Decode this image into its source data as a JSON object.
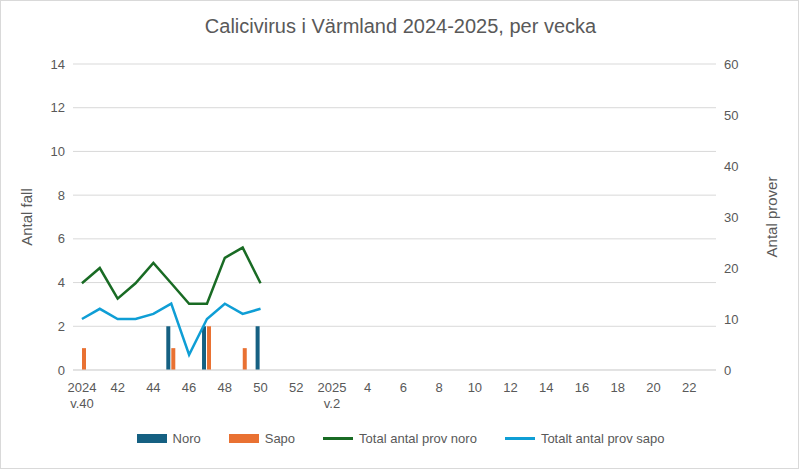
{
  "chart_data": {
    "type": "bar",
    "title": "Calicivirus i Värmland 2024-2025, per vecka",
    "y_label": "Antal fall",
    "y2_label": "Antal prover",
    "categories": [
      "2024 v.40",
      null,
      "42",
      null,
      "44",
      null,
      "46",
      null,
      "48",
      null,
      "50",
      null,
      "52",
      null,
      "2025 v.2",
      null,
      "4",
      null,
      "6",
      null,
      "8",
      null,
      "10",
      null,
      "12",
      null,
      "14",
      null,
      "16",
      null,
      "18",
      null,
      "20",
      null,
      "22",
      null
    ],
    "series": [
      {
        "name": "Noro",
        "type": "bar",
        "color": "#156082",
        "values": [
          0,
          0,
          0,
          0,
          0,
          2,
          0,
          2,
          0,
          0,
          2,
          null,
          null,
          null,
          null,
          null,
          null,
          null,
          null,
          null,
          null,
          null,
          null,
          null,
          null,
          null,
          null,
          null,
          null,
          null,
          null,
          null,
          null,
          null,
          null,
          null
        ]
      },
      {
        "name": "Sapo",
        "type": "bar",
        "color": "#E97132",
        "values": [
          1,
          0,
          0,
          0,
          0,
          1,
          0,
          2,
          0,
          1,
          0,
          null,
          null,
          null,
          null,
          null,
          null,
          null,
          null,
          null,
          null,
          null,
          null,
          null,
          null,
          null,
          null,
          null,
          null,
          null,
          null,
          null,
          null,
          null,
          null,
          null
        ]
      },
      {
        "name": "Total antal prov noro",
        "type": "line",
        "axis": "y2",
        "color": "#196B24",
        "values": [
          17,
          20,
          14,
          17,
          21,
          17,
          13,
          13,
          22,
          24,
          17,
          null,
          null,
          null,
          null,
          null,
          null,
          null,
          null,
          null,
          null,
          null,
          null,
          null,
          null,
          null,
          null,
          null,
          null,
          null,
          null,
          null,
          null,
          null,
          null,
          null
        ]
      },
      {
        "name": "Totalt antal prov sapo",
        "type": "line",
        "axis": "y2",
        "color": "#0F9ED5",
        "values": [
          10,
          12,
          10,
          10,
          11,
          13,
          3,
          10,
          13,
          11,
          12,
          null,
          null,
          null,
          null,
          null,
          null,
          null,
          null,
          null,
          null,
          null,
          null,
          null,
          null,
          null,
          null,
          null,
          null,
          null,
          null,
          null,
          null,
          null,
          null,
          null
        ]
      }
    ],
    "ylim": [
      0,
      14
    ],
    "yticks": [
      0,
      2,
      4,
      6,
      8,
      10,
      12,
      14
    ],
    "y2lim": [
      0,
      60
    ],
    "y2ticks": [
      0,
      10,
      20,
      30,
      40,
      50,
      60
    ],
    "grid": true,
    "legend": "bottom"
  }
}
